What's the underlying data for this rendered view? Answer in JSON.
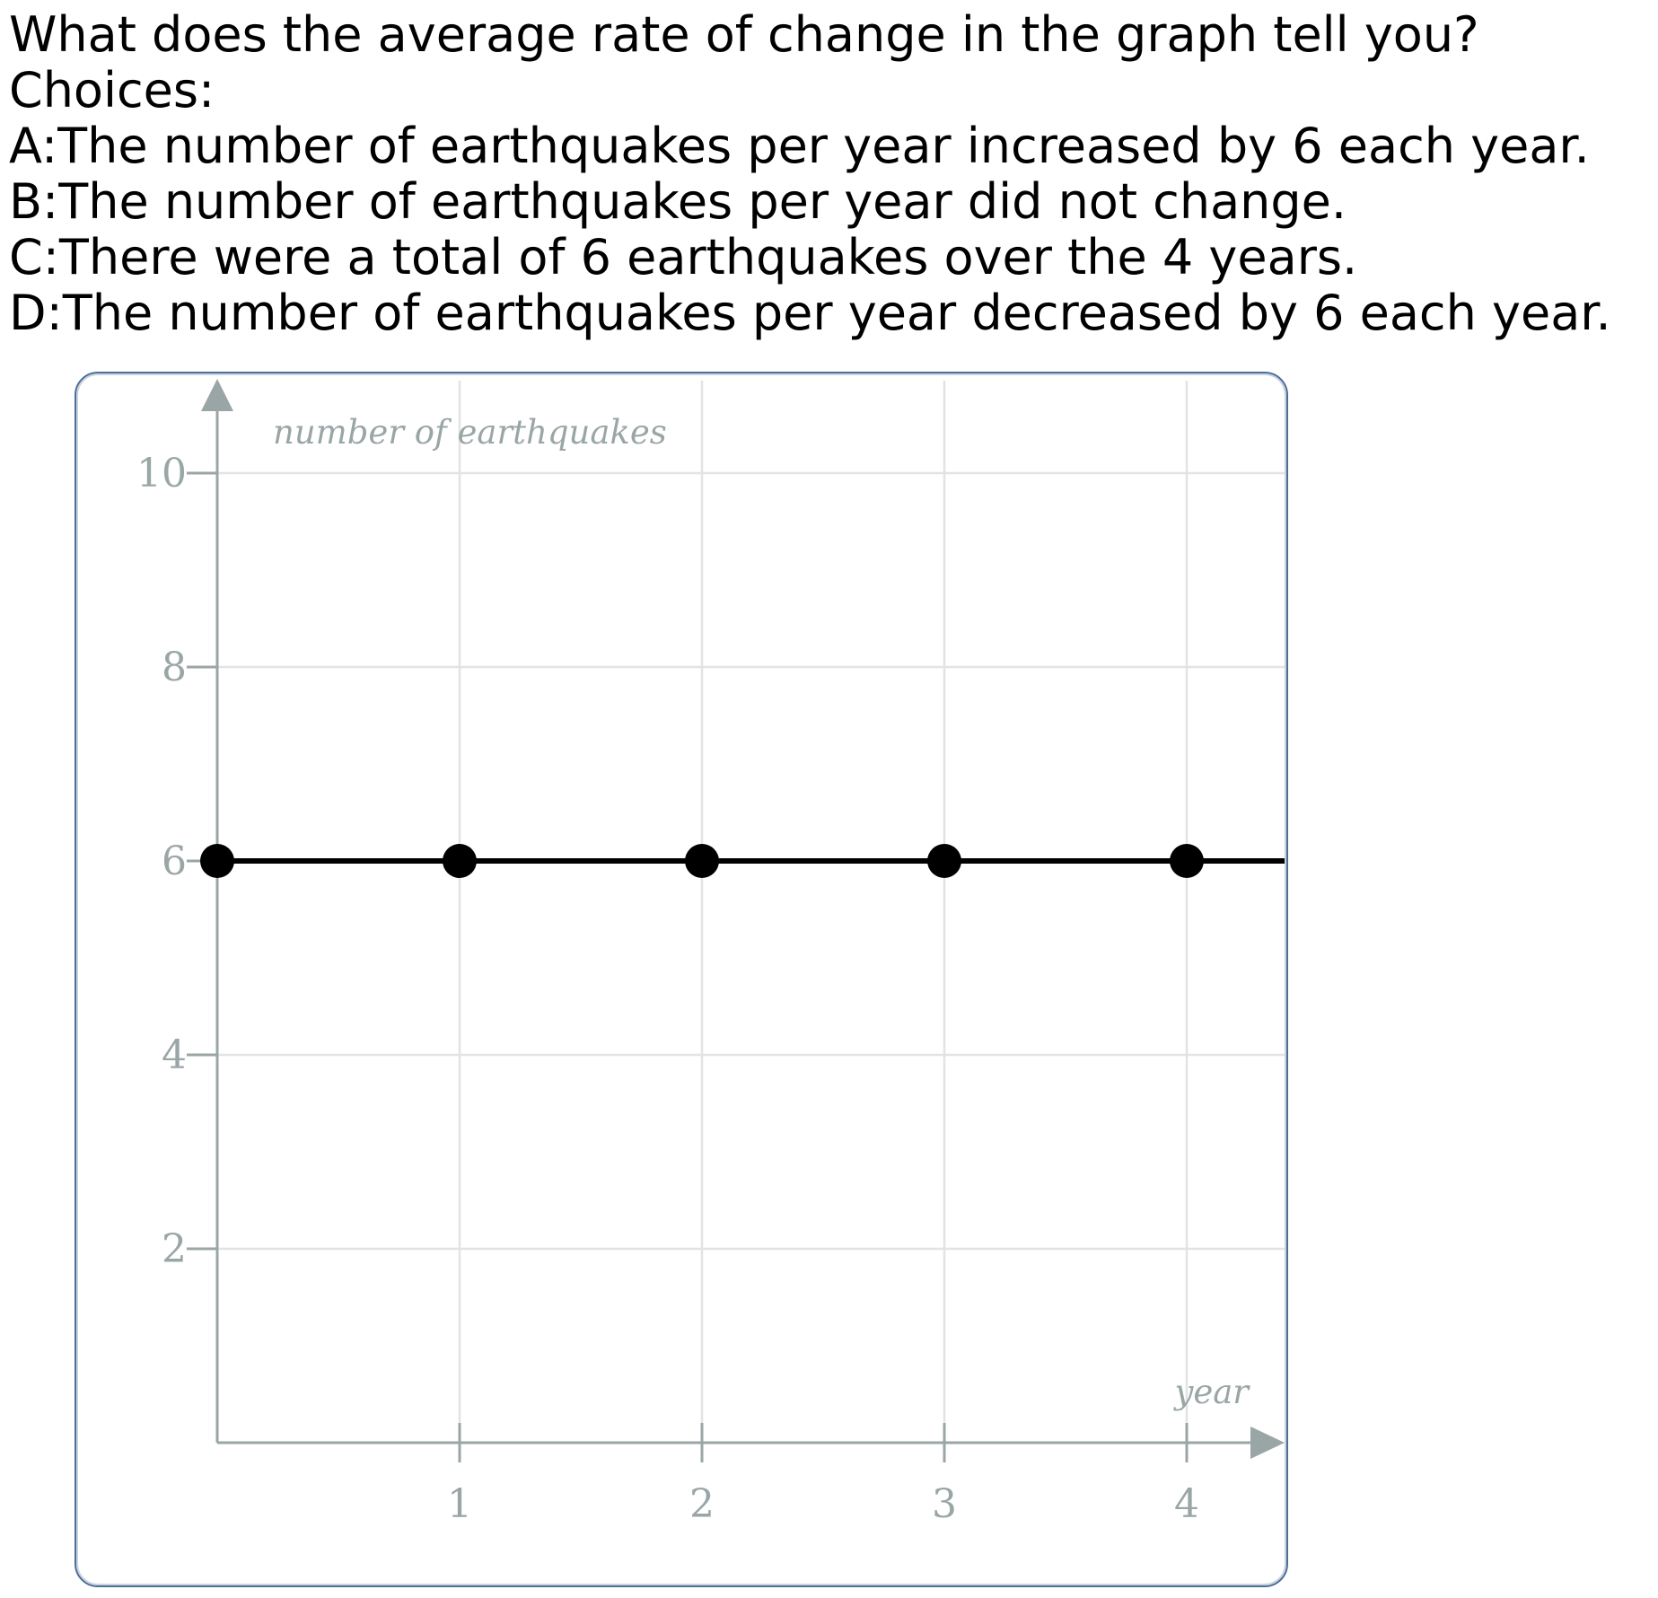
{
  "question": {
    "prompt": "What does the average rate of change in the graph tell you?",
    "choices_label": "Choices:",
    "choices": [
      "A:The number of earthquakes per year increased by 6 each year.",
      "B:The number of earthquakes per year did not change.",
      "C:There were a total of 6 earthquakes over the 4 years.",
      "D:The number of earthquakes per year decreased by 6 each year."
    ]
  },
  "chart_data": {
    "type": "line",
    "title": "",
    "xlabel": "year",
    "ylabel": "number of earthquakes",
    "xlim": [
      0,
      4.4
    ],
    "ylim": [
      0,
      11
    ],
    "x_ticks": [
      1,
      2,
      3,
      4
    ],
    "y_ticks": [
      2,
      4,
      6,
      8,
      10
    ],
    "x_tick_labels": [
      "1",
      "2",
      "3",
      "4"
    ],
    "y_tick_labels": [
      "2",
      "4",
      "6",
      "8",
      "10"
    ],
    "grid": true,
    "series": [
      {
        "x": [
          0,
          1,
          2,
          3,
          4
        ],
        "y": [
          6,
          6,
          6,
          6,
          6
        ],
        "markers": true,
        "extends_right": true
      }
    ],
    "colors": {
      "axis": "#9aa6a6",
      "grid": "#e3e3e3",
      "line": "#000000",
      "marker": "#000000"
    }
  }
}
